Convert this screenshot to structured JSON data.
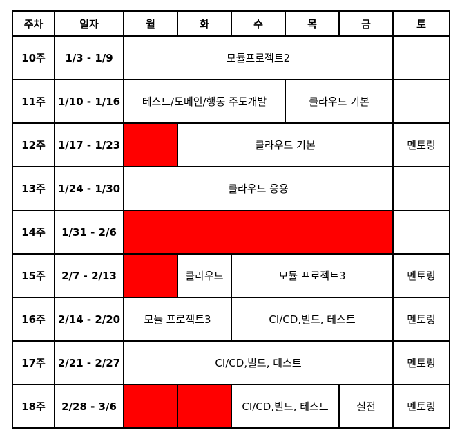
{
  "header": [
    "주차",
    "일자",
    "월",
    "화",
    "수",
    "목",
    "금",
    "토"
  ],
  "colors": {
    "highlight": "#ff0000",
    "border": "#000000"
  },
  "rows": [
    {
      "week": "10주",
      "date": "1/3 - 1/9",
      "span_main": "모듈프로젝트2"
    },
    {
      "week": "11주",
      "date": "1/10 - 1/16",
      "span_a": "테스트/도메인/행동 주도개발",
      "span_b": "클라우드 기본"
    },
    {
      "week": "12주",
      "date": "1/17 - 1/23",
      "span_main": "클라우드 기본",
      "sat": "멘토링"
    },
    {
      "week": "13주",
      "date": "1/24 - 1/30",
      "span_main": "클라우드 응용"
    },
    {
      "week": "14주",
      "date": "1/31 - 2/6"
    },
    {
      "week": "15주",
      "date": "2/7 - 2/13",
      "tue": "클라우드",
      "span_main": "모듈 프로젝트3",
      "sat": "멘토링"
    },
    {
      "week": "16주",
      "date": "2/14 - 2/20",
      "span_a": "모듈 프로젝트3",
      "span_b": "CI/CD,빌드, 테스트",
      "sat": "멘토링"
    },
    {
      "week": "17주",
      "date": "2/21 - 2/27",
      "span_main": "CI/CD,빌드, 테스트",
      "sat": "멘토링"
    },
    {
      "week": "18주",
      "date": "2/28 - 3/6",
      "span_main": "CI/CD,빌드, 테스트",
      "fri": "실전",
      "sat": "멘토링"
    }
  ]
}
